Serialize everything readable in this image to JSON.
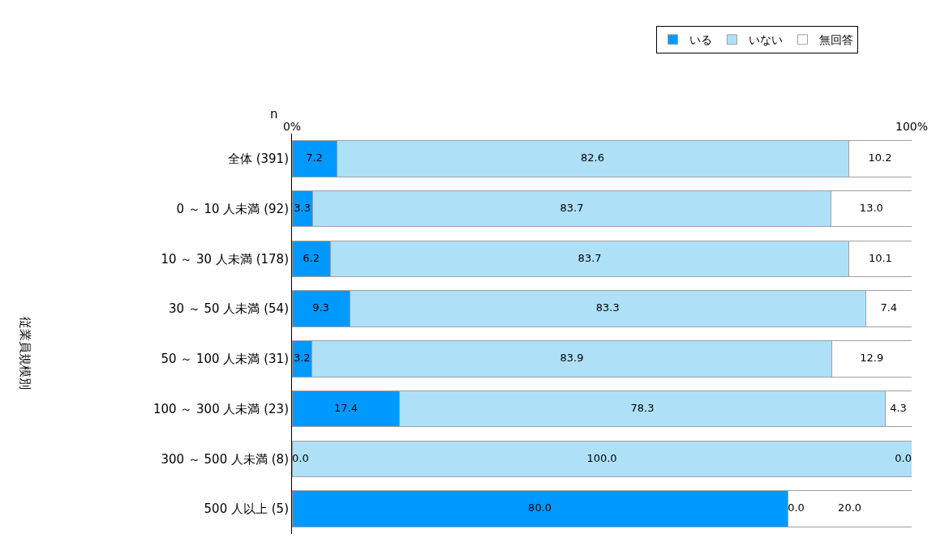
{
  "chart_data": {
    "type": "bar",
    "orientation": "horizontal",
    "stacked": true,
    "categories": [
      "全体 (391)",
      "0 ～ 10 人未満 (92)",
      "10 ～ 30 人未満 (178)",
      "30 ～ 50 人未満 (54)",
      "50 ～ 100 人未満 (31)",
      "100 ～ 300 人未満 (23)",
      "300 ～ 500 人未満 (8)",
      "500 人以上 (5)"
    ],
    "series": [
      {
        "name": "いる",
        "color": "#0099ff",
        "values": [
          7.2,
          3.3,
          6.2,
          9.3,
          3.2,
          17.4,
          0.0,
          80.0
        ],
        "value_labels": [
          "7.2",
          "3.3",
          "6.2",
          "9.3",
          "3.2",
          "17.4",
          "0.0",
          "80.0"
        ]
      },
      {
        "name": "いない",
        "color": "#aee0f7",
        "values": [
          82.6,
          83.7,
          83.7,
          83.3,
          83.9,
          78.3,
          100.0,
          0.0
        ],
        "value_labels": [
          "82.6",
          "83.7",
          "83.7",
          "83.3",
          "83.9",
          "78.3",
          "100.0",
          "0.0"
        ]
      },
      {
        "name": "無回答",
        "color": "#ffffff",
        "values": [
          10.2,
          13.0,
          10.1,
          7.4,
          12.9,
          4.3,
          0.0,
          20.0
        ],
        "value_labels": [
          "10.2",
          "13.0",
          "10.1",
          "7.4",
          "12.9",
          "4.3",
          "0.0",
          "20.0"
        ]
      }
    ],
    "xlim": [
      0,
      100
    ],
    "xticks": [
      {
        "value": 0,
        "label": "0%"
      },
      {
        "value": 100,
        "label": "100%"
      }
    ],
    "annotations": [
      "n",
      "従業員規模別"
    ],
    "legend": "top"
  }
}
